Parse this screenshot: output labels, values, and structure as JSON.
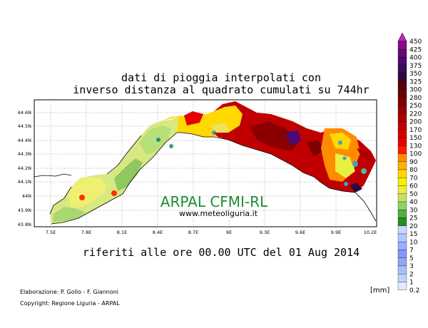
{
  "title_line1": "dati di pioggia interpolati con",
  "title_line2": "inverso distanza al quadrato cumulati su 744hr",
  "subtitle": "riferiti alle ore 00.00 UTC del 01 Aug 2014",
  "watermark": "ARPAL CFMI-RL",
  "website": "www.meteoliguria.it",
  "credits": [
    "Elaborazione: P. Gollo - F. Giannoni",
    "Copyright: Regione Liguria - ARPAL"
  ],
  "unit": "[mm]",
  "map": {
    "lat_ticks": [
      "44.6N",
      "44.5N",
      "44.4N",
      "44.3N",
      "44.2N",
      "44.1N",
      "44N",
      "43.9N",
      "43.8N"
    ],
    "lon_ticks": [
      "7.5E",
      "7.8E",
      "8.1E",
      "8.4E",
      "8.7E",
      "9E",
      "9.3E",
      "9.6E",
      "9.9E",
      "10.2E"
    ]
  },
  "colorbar": {
    "labels": [
      "450",
      "425",
      "400",
      "375",
      "350",
      "325",
      "300",
      "280",
      "250",
      "220",
      "200",
      "170",
      "150",
      "130",
      "100",
      "90",
      "80",
      "70",
      "60",
      "50",
      "40",
      "30",
      "25",
      "20",
      "15",
      "10",
      "7",
      "5",
      "3",
      "2",
      "1",
      "0.2"
    ],
    "colors": [
      "#8a0a8a",
      "#6b0a6b",
      "#4a0a70",
      "#3a0a55",
      "#2c0a40",
      "#5a0000",
      "#6a0000",
      "#7e0000",
      "#960000",
      "#aa0000",
      "#c00000",
      "#d40000",
      "#e60000",
      "#ff1a00",
      "#ff8c00",
      "#ffb000",
      "#ffd800",
      "#f8f000",
      "#e8f040",
      "#c8e060",
      "#90d060",
      "#50b040",
      "#209020",
      "#c8d8ff",
      "#b0c8ff",
      "#98b0ff",
      "#8098ff",
      "#90a8f0",
      "#a8c0f8",
      "#c0d4fa",
      "#e0eafc"
    ]
  }
}
